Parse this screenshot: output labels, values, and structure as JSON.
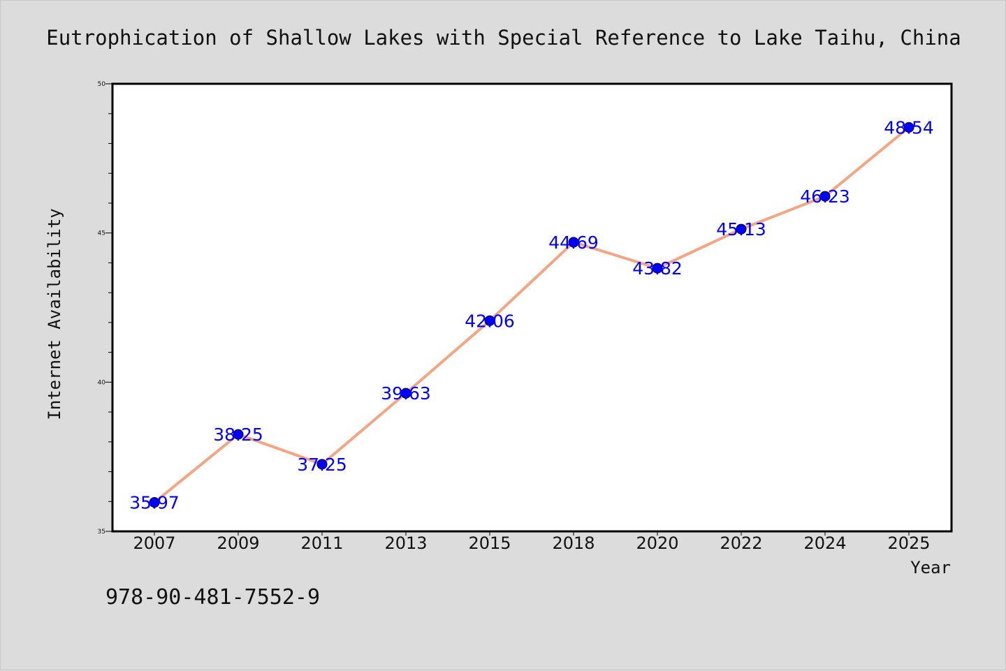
{
  "chart_data": {
    "type": "line",
    "title": "Eutrophication of Shallow Lakes with Special Reference to Lake Taihu, China",
    "xlabel": "Year",
    "ylabel": "Internet Availability",
    "categories": [
      "2007",
      "2009",
      "2011",
      "2013",
      "2015",
      "2018",
      "2020",
      "2022",
      "2024",
      "2025"
    ],
    "series": [
      {
        "values": [
          35.97,
          38.25,
          37.25,
          39.63,
          42.06,
          44.69,
          43.82,
          45.13,
          46.23,
          48.54
        ],
        "labels": [
          "35.97",
          "38.25",
          "37.25",
          "39.63",
          "42.06",
          "44.69",
          "43.82",
          "45.13",
          "46.23",
          "48.54"
        ],
        "line_color": "#f4a582",
        "marker_color": "#0000ff"
      }
    ],
    "ylim": [
      35,
      50
    ],
    "yticks": [
      35,
      40,
      45,
      50
    ],
    "ytick_labels": [
      "35",
      "40",
      "45",
      "50"
    ],
    "grid": false,
    "legend": "none"
  },
  "footer": {
    "isbn": "978-90-481-7552-9"
  },
  "colors": {
    "background": "#dcdcdc",
    "plot_background": "#ffffff",
    "label_color": "#0000ff"
  }
}
